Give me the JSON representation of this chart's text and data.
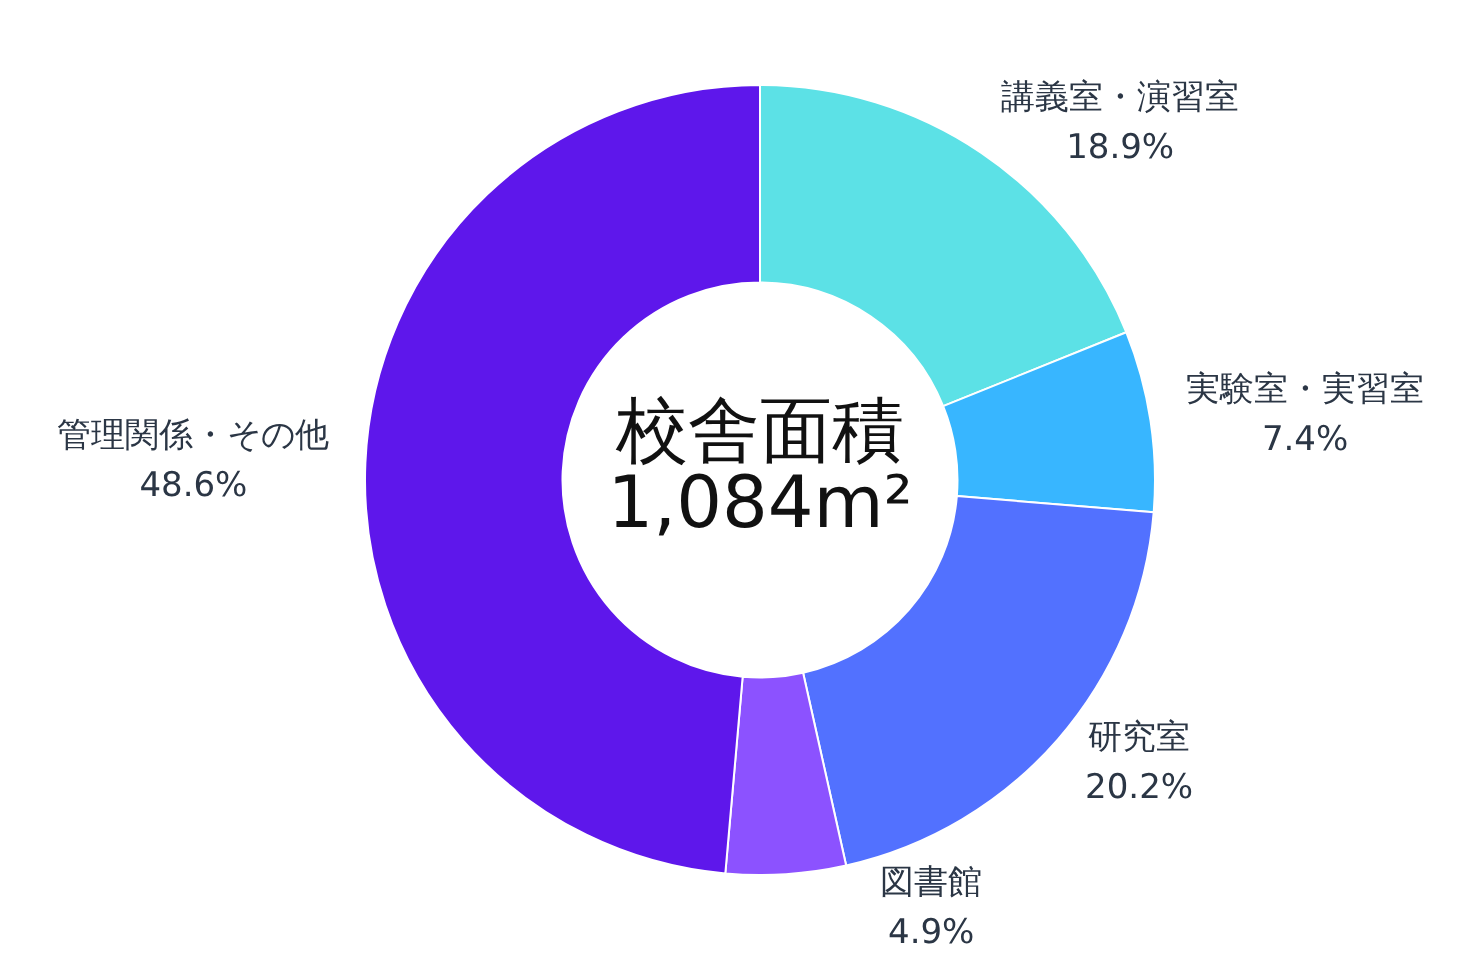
{
  "chart_data": {
    "type": "donut",
    "title": "校舎面積",
    "subtitle": "1,084m²",
    "categories": [
      "講義室・演習室",
      "実験室・実習室",
      "研究室",
      "図書館",
      "管理関係・その他"
    ],
    "values": [
      18.9,
      7.4,
      20.2,
      4.9,
      48.6
    ],
    "value_labels": [
      "18.9%",
      "7.4%",
      "20.2%",
      "4.9%",
      "48.6%"
    ],
    "colors": [
      "#5ce1e6",
      "#38b6ff",
      "#5271ff",
      "#8c52ff",
      "#5e17eb"
    ]
  }
}
